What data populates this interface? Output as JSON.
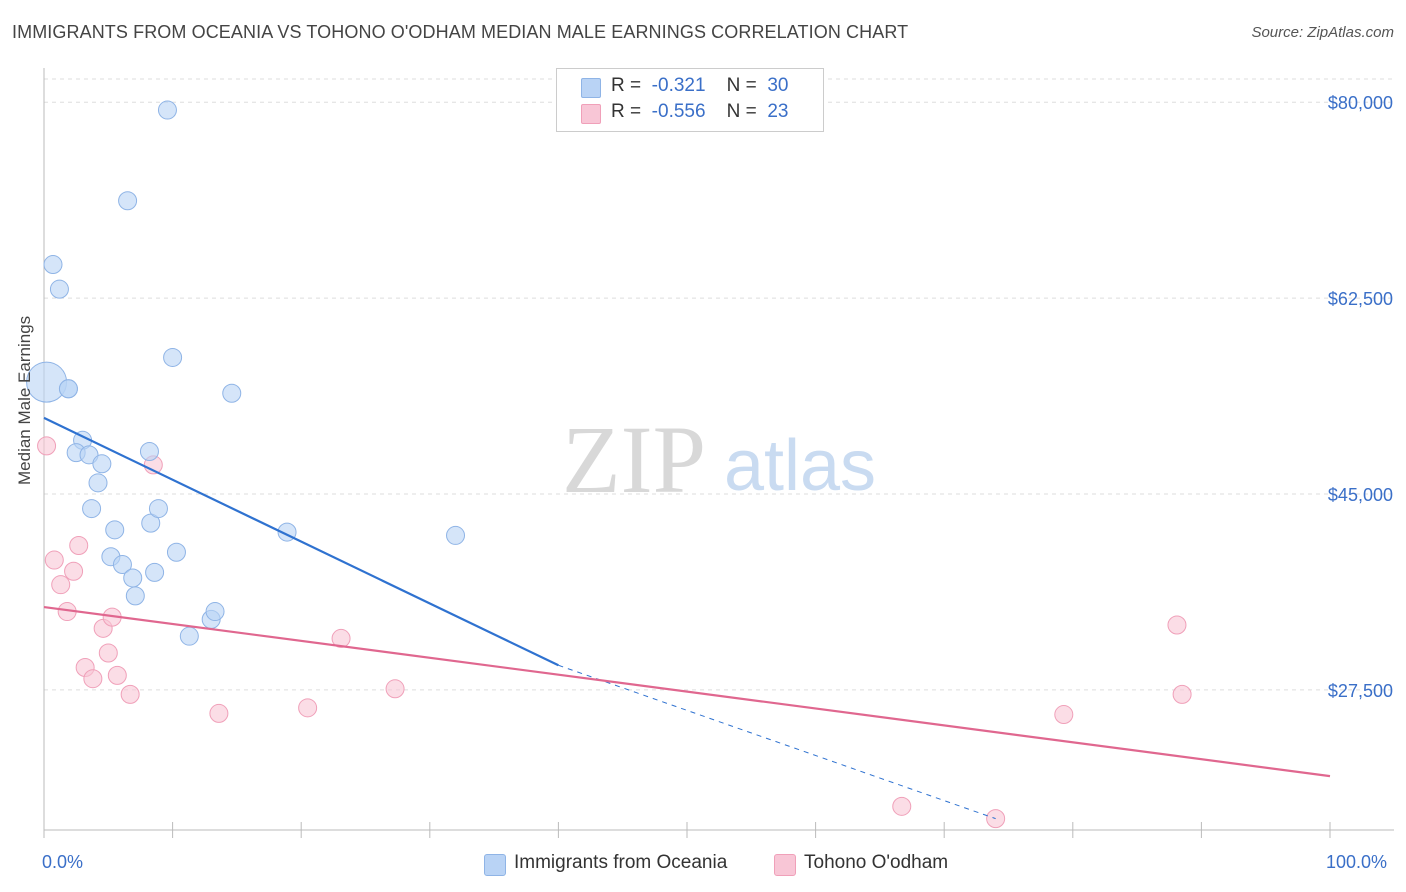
{
  "title": "IMMIGRANTS FROM OCEANIA VS TOHONO O'ODHAM MEDIAN MALE EARNINGS CORRELATION CHART",
  "source": "Source: ZipAtlas.com",
  "watermark": {
    "zip": "ZIP",
    "atlas": "atlas"
  },
  "colors": {
    "blue_fill": "#b9d3f5",
    "blue_stroke": "#8fb4e6",
    "blue_line": "#2f72d0",
    "pink_fill": "#f8c6d6",
    "pink_stroke": "#f0a0b9",
    "pink_line": "#e0678f",
    "axis_text": "#3a6fc8",
    "grid": "#dddddd"
  },
  "legend": {
    "rows": [
      {
        "r_label": "R =",
        "r_value": "-0.321",
        "n_label": "N =",
        "n_value": "30"
      },
      {
        "r_label": "R =",
        "r_value": "-0.556",
        "n_label": "N =",
        "n_value": "23"
      }
    ]
  },
  "chart_data": {
    "type": "scatter",
    "title": "IMMIGRANTS FROM OCEANIA VS TOHONO O'ODHAM MEDIAN MALE EARNINGS CORRELATION CHART",
    "xlabel": "",
    "ylabel": "Median Male Earnings",
    "xlim": [
      0,
      100
    ],
    "ylim": [
      15700,
      82700
    ],
    "x_tick_labels": [
      "0.0%",
      "100.0%"
    ],
    "y_ticks": [
      27500,
      45000,
      62500,
      80000
    ],
    "y_tick_labels": [
      "$27,500",
      "$45,000",
      "$62,500",
      "$80,000"
    ],
    "grid": true,
    "series": [
      {
        "name": "Immigrants from Oceania",
        "points": [
          [
            0.2,
            55000,
            "large"
          ],
          [
            0.7,
            65500
          ],
          [
            1.2,
            63300
          ],
          [
            1.9,
            54400
          ],
          [
            1.9,
            54400
          ],
          [
            3.0,
            49800
          ],
          [
            2.5,
            48700
          ],
          [
            3.5,
            48500
          ],
          [
            4.5,
            47700
          ],
          [
            4.2,
            46000
          ],
          [
            3.7,
            43700
          ],
          [
            5.5,
            41800
          ],
          [
            5.2,
            39400
          ],
          [
            6.1,
            38700
          ],
          [
            6.9,
            37500
          ],
          [
            7.1,
            35900
          ],
          [
            8.3,
            42400
          ],
          [
            8.2,
            48800
          ],
          [
            8.9,
            43700
          ],
          [
            10.3,
            39800
          ],
          [
            8.6,
            38000
          ],
          [
            9.6,
            79300
          ],
          [
            6.5,
            71200
          ],
          [
            10.0,
            57200
          ],
          [
            14.6,
            54000
          ],
          [
            11.3,
            32300
          ],
          [
            13.0,
            33800
          ],
          [
            13.3,
            34500
          ],
          [
            18.9,
            41600
          ],
          [
            32.0,
            41300
          ]
        ],
        "trend": {
          "x1": 0,
          "y1": 51800,
          "x2": 40,
          "y2": 29700,
          "dashed_to_x": 74,
          "dashed_to_y": 16000
        }
      },
      {
        "name": "Tohono O'odham",
        "points": [
          [
            0.2,
            49300
          ],
          [
            0.8,
            39100
          ],
          [
            1.3,
            36900
          ],
          [
            1.8,
            34500
          ],
          [
            2.3,
            38100
          ],
          [
            2.7,
            40400
          ],
          [
            3.2,
            29500
          ],
          [
            3.8,
            28500
          ],
          [
            4.6,
            33000
          ],
          [
            5.0,
            30800
          ],
          [
            5.3,
            34000
          ],
          [
            5.7,
            28800
          ],
          [
            6.7,
            27100
          ],
          [
            8.5,
            47600
          ],
          [
            13.6,
            25400
          ],
          [
            20.5,
            25900
          ],
          [
            23.1,
            32100
          ],
          [
            27.3,
            27600
          ],
          [
            66.7,
            17100
          ],
          [
            74.0,
            16000
          ],
          [
            79.3,
            25300
          ],
          [
            88.1,
            33300
          ],
          [
            88.5,
            27100
          ]
        ],
        "trend": {
          "x1": 0,
          "y1": 34900,
          "x2": 100,
          "y2": 19800
        }
      }
    ]
  },
  "bottom_legend": {
    "items": [
      "Immigrants from Oceania",
      "Tohono O'odham"
    ]
  }
}
